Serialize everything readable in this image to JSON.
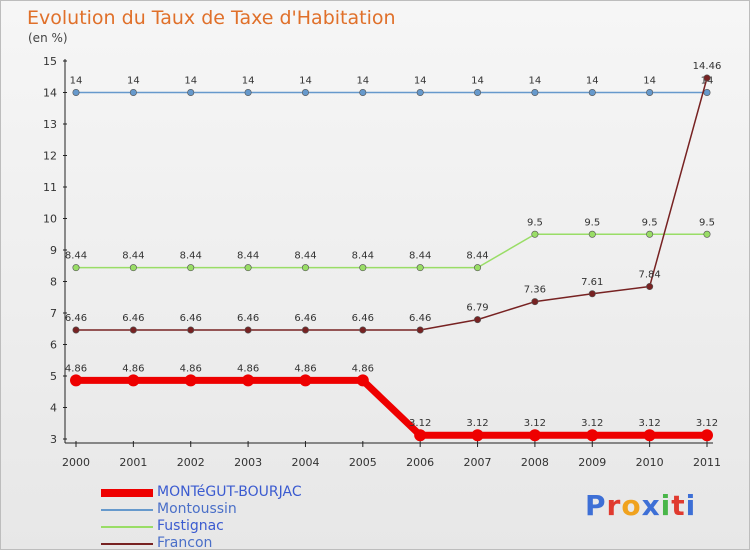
{
  "chart_data": {
    "type": "line",
    "title": "Evolution du Taux de Taxe d'Habitation",
    "subtitle": "(en %)",
    "xlabel": "",
    "ylabel": "",
    "ylim": [
      3,
      15
    ],
    "yticks": [
      "3",
      "4",
      "5",
      "6",
      "7",
      "8",
      "9",
      "10",
      "11",
      "12",
      "13",
      "14",
      "15"
    ],
    "categories": [
      "2000",
      "2001",
      "2002",
      "2003",
      "2004",
      "2005",
      "2006",
      "2007",
      "2008",
      "2009",
      "2010",
      "2011"
    ],
    "grid": false,
    "legend": "bottom-left",
    "series": [
      {
        "name": "Montoussin",
        "color": "#6699cc",
        "values": [
          14,
          14,
          14,
          14,
          14,
          14,
          14,
          14,
          14,
          14,
          14,
          14
        ],
        "labels": [
          "14",
          "14",
          "14",
          "14",
          "14",
          "14",
          "14",
          "14",
          "14",
          "14",
          "14",
          "14"
        ]
      },
      {
        "name": "Fustignac",
        "color": "#99dd66",
        "values": [
          8.44,
          8.44,
          8.44,
          8.44,
          8.44,
          8.44,
          8.44,
          8.44,
          9.5,
          9.5,
          9.5,
          9.5
        ],
        "labels": [
          "8.44",
          "8.44",
          "8.44",
          "8.44",
          "8.44",
          "8.44",
          "8.44",
          "8.44",
          "9.5",
          "9.5",
          "9.5",
          "9.5"
        ]
      },
      {
        "name": "Francon",
        "color": "#772222",
        "values": [
          6.46,
          6.46,
          6.46,
          6.46,
          6.46,
          6.46,
          6.46,
          6.79,
          7.36,
          7.61,
          7.84,
          14.46
        ],
        "labels": [
          "6.46",
          "6.46",
          "6.46",
          "6.46",
          "6.46",
          "6.46",
          "6.46",
          "6.79",
          "7.36",
          "7.61",
          "7.84",
          "14.46"
        ]
      },
      {
        "name": "MONTéGUT-BOURJAC",
        "color": "#ee0000",
        "values": [
          4.86,
          4.86,
          4.86,
          4.86,
          4.86,
          4.86,
          3.12,
          3.12,
          3.12,
          3.12,
          3.12,
          3.12
        ],
        "labels": [
          "4.86",
          "4.86",
          "4.86",
          "4.86",
          "4.86",
          "4.86",
          "3.12",
          "3.12",
          "3.12",
          "3.12",
          "3.12",
          "3.12"
        ]
      }
    ]
  },
  "legend_items": [
    {
      "name": "MONTéGUT-BOURJAC",
      "color": "#ee0000"
    },
    {
      "name": "Montoussin",
      "color": "#6699cc"
    },
    {
      "name": "Fustignac",
      "color": "#99dd66"
    },
    {
      "name": "Francon",
      "color": "#772222"
    }
  ],
  "logo": {
    "letters": [
      "P",
      "r",
      "o",
      "x",
      "i",
      "t",
      "i"
    ],
    "colors": [
      "#3d6fd6",
      "#e03a2f",
      "#f0a21e",
      "#3d6fd6",
      "#49b649",
      "#e03a2f",
      "#3d6fd6"
    ]
  }
}
